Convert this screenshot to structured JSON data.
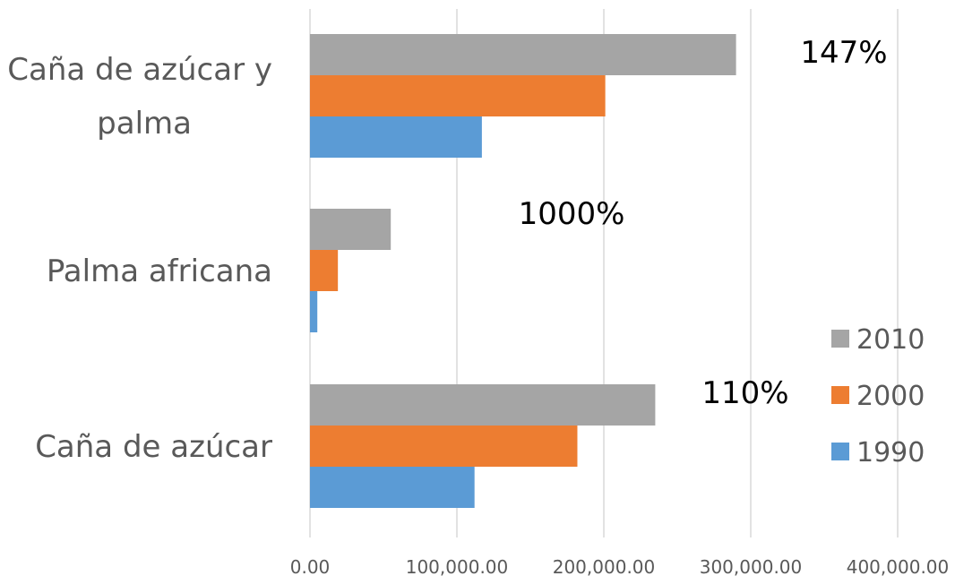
{
  "chart_data": {
    "type": "bar",
    "orientation": "horizontal",
    "title": "",
    "xlabel": "",
    "ylabel": "",
    "categories": [
      "Caña de azúcar",
      "Palma africana",
      "Caña de azúcar y palma"
    ],
    "series": [
      {
        "name": "1990",
        "color": "#5b9bd5",
        "values": [
          112000,
          5000,
          117000
        ]
      },
      {
        "name": "2000",
        "color": "#ed7d31",
        "values": [
          182000,
          19000,
          201000
        ]
      },
      {
        "name": "2010",
        "color": "#a5a5a5",
        "values": [
          235000,
          55000,
          290000
        ]
      }
    ],
    "xlim": [
      0,
      400000
    ],
    "x_ticks": [
      0,
      100000,
      200000,
      300000,
      400000
    ],
    "x_tick_labels": [
      "0.00",
      "100,000.00",
      "200,000.00",
      "300,000.00",
      "400,000.00"
    ],
    "annotations": [
      {
        "category": "Caña de azúcar y palma",
        "text": "147%"
      },
      {
        "category": "Palma africana",
        "text": "1000%"
      },
      {
        "category": "Caña de azúcar",
        "text": "110%"
      }
    ],
    "grid": "vertical",
    "legend": {
      "position": "right",
      "order": [
        "2010",
        "2000",
        "1990"
      ]
    }
  }
}
